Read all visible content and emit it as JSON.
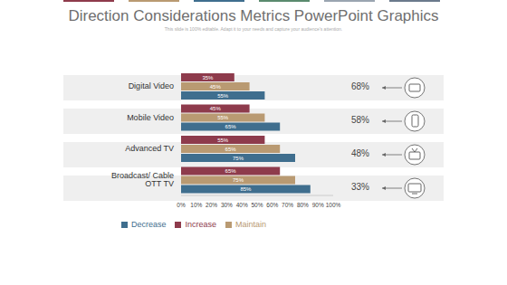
{
  "chart_data": {
    "type": "bar",
    "orientation": "horizontal",
    "title": "Direction Considerations Metrics PowerPoint Graphics",
    "subtitle": "This slide is 100% editable. Adapt it to your needs and capture your audience's attention.",
    "categories": [
      "Digital Video",
      "Mobile Video",
      "Advanced TV",
      "Broadcast/  Cable OTT TV"
    ],
    "series": [
      {
        "name": "Increase",
        "color": "#8e3b4c",
        "values": [
          35,
          45,
          55,
          65
        ],
        "value_labels": [
          "35%",
          "45%",
          "55%",
          "65%"
        ]
      },
      {
        "name": "Maintain",
        "color": "#b99a72",
        "values": [
          45,
          55,
          65,
          75
        ],
        "value_labels": [
          "45%",
          "55%",
          "65%",
          "75%"
        ]
      },
      {
        "name": "Decrease",
        "color": "#3f6e8e",
        "values": [
          55,
          65,
          75,
          85
        ],
        "value_labels": [
          "55%",
          "65%",
          "75%",
          "85%"
        ]
      }
    ],
    "xlim": [
      0,
      100
    ],
    "xticks": [
      {
        "value": 0,
        "label": "0%"
      },
      {
        "value": 10,
        "label": "10%"
      },
      {
        "value": 20,
        "label": "20%"
      },
      {
        "value": 30,
        "label": "30%"
      },
      {
        "value": 40,
        "label": "40%"
      },
      {
        "value": 50,
        "label": "50%"
      },
      {
        "value": 60,
        "label": "60%"
      },
      {
        "value": 70,
        "label": "70%"
      },
      {
        "value": 80,
        "label": "80%"
      },
      {
        "value": 90,
        "label": "90%"
      },
      {
        "value": 100,
        "label": "100%"
      }
    ],
    "data_labels": true,
    "legend": "bottom",
    "annotations": [
      "68%",
      "58%",
      "48%",
      "33%"
    ]
  }
}
